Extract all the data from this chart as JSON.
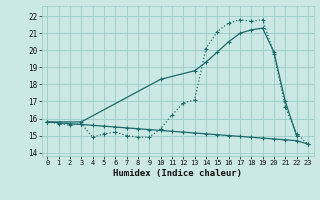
{
  "xlabel": "Humidex (Indice chaleur)",
  "bg_color": "#cce8e4",
  "grid_color": "#99ccc8",
  "line_color": "#1a6b6b",
  "xlim": [
    -0.5,
    23.5
  ],
  "ylim": [
    13.8,
    22.6
  ],
  "xticks": [
    0,
    1,
    2,
    3,
    4,
    5,
    6,
    7,
    8,
    9,
    10,
    11,
    12,
    13,
    14,
    15,
    16,
    17,
    18,
    19,
    20,
    21,
    22,
    23
  ],
  "yticks": [
    14,
    15,
    16,
    17,
    18,
    19,
    20,
    21,
    22
  ],
  "line1_x": [
    0,
    1,
    2,
    3,
    4,
    5,
    6,
    7,
    8,
    9,
    10,
    11,
    12,
    13,
    14,
    15,
    16,
    17,
    18,
    19,
    20,
    21,
    22,
    23
  ],
  "line1_y": [
    15.8,
    15.7,
    15.6,
    15.7,
    14.9,
    15.1,
    15.2,
    15.0,
    14.9,
    14.9,
    15.4,
    16.2,
    16.9,
    17.1,
    20.1,
    21.1,
    21.6,
    21.8,
    21.7,
    21.8,
    19.8,
    16.7,
    15.1,
    14.5
  ],
  "line2_x": [
    0,
    1,
    2,
    3,
    4,
    5,
    6,
    7,
    8,
    9,
    10,
    11,
    12,
    13,
    14,
    15,
    16,
    17,
    18,
    19,
    20,
    21,
    22,
    23
  ],
  "line2_y": [
    15.8,
    15.75,
    15.7,
    15.65,
    15.6,
    15.55,
    15.5,
    15.45,
    15.4,
    15.35,
    15.3,
    15.25,
    15.2,
    15.15,
    15.1,
    15.05,
    15.0,
    14.95,
    14.9,
    14.85,
    14.8,
    14.75,
    14.7,
    14.5
  ],
  "line3_x": [
    0,
    3,
    10,
    13,
    14,
    15,
    16,
    17,
    18,
    19,
    20,
    21,
    22
  ],
  "line3_y": [
    15.8,
    15.8,
    18.3,
    18.8,
    19.3,
    19.9,
    20.5,
    21.0,
    21.2,
    21.3,
    19.9,
    17.0,
    15.0
  ]
}
